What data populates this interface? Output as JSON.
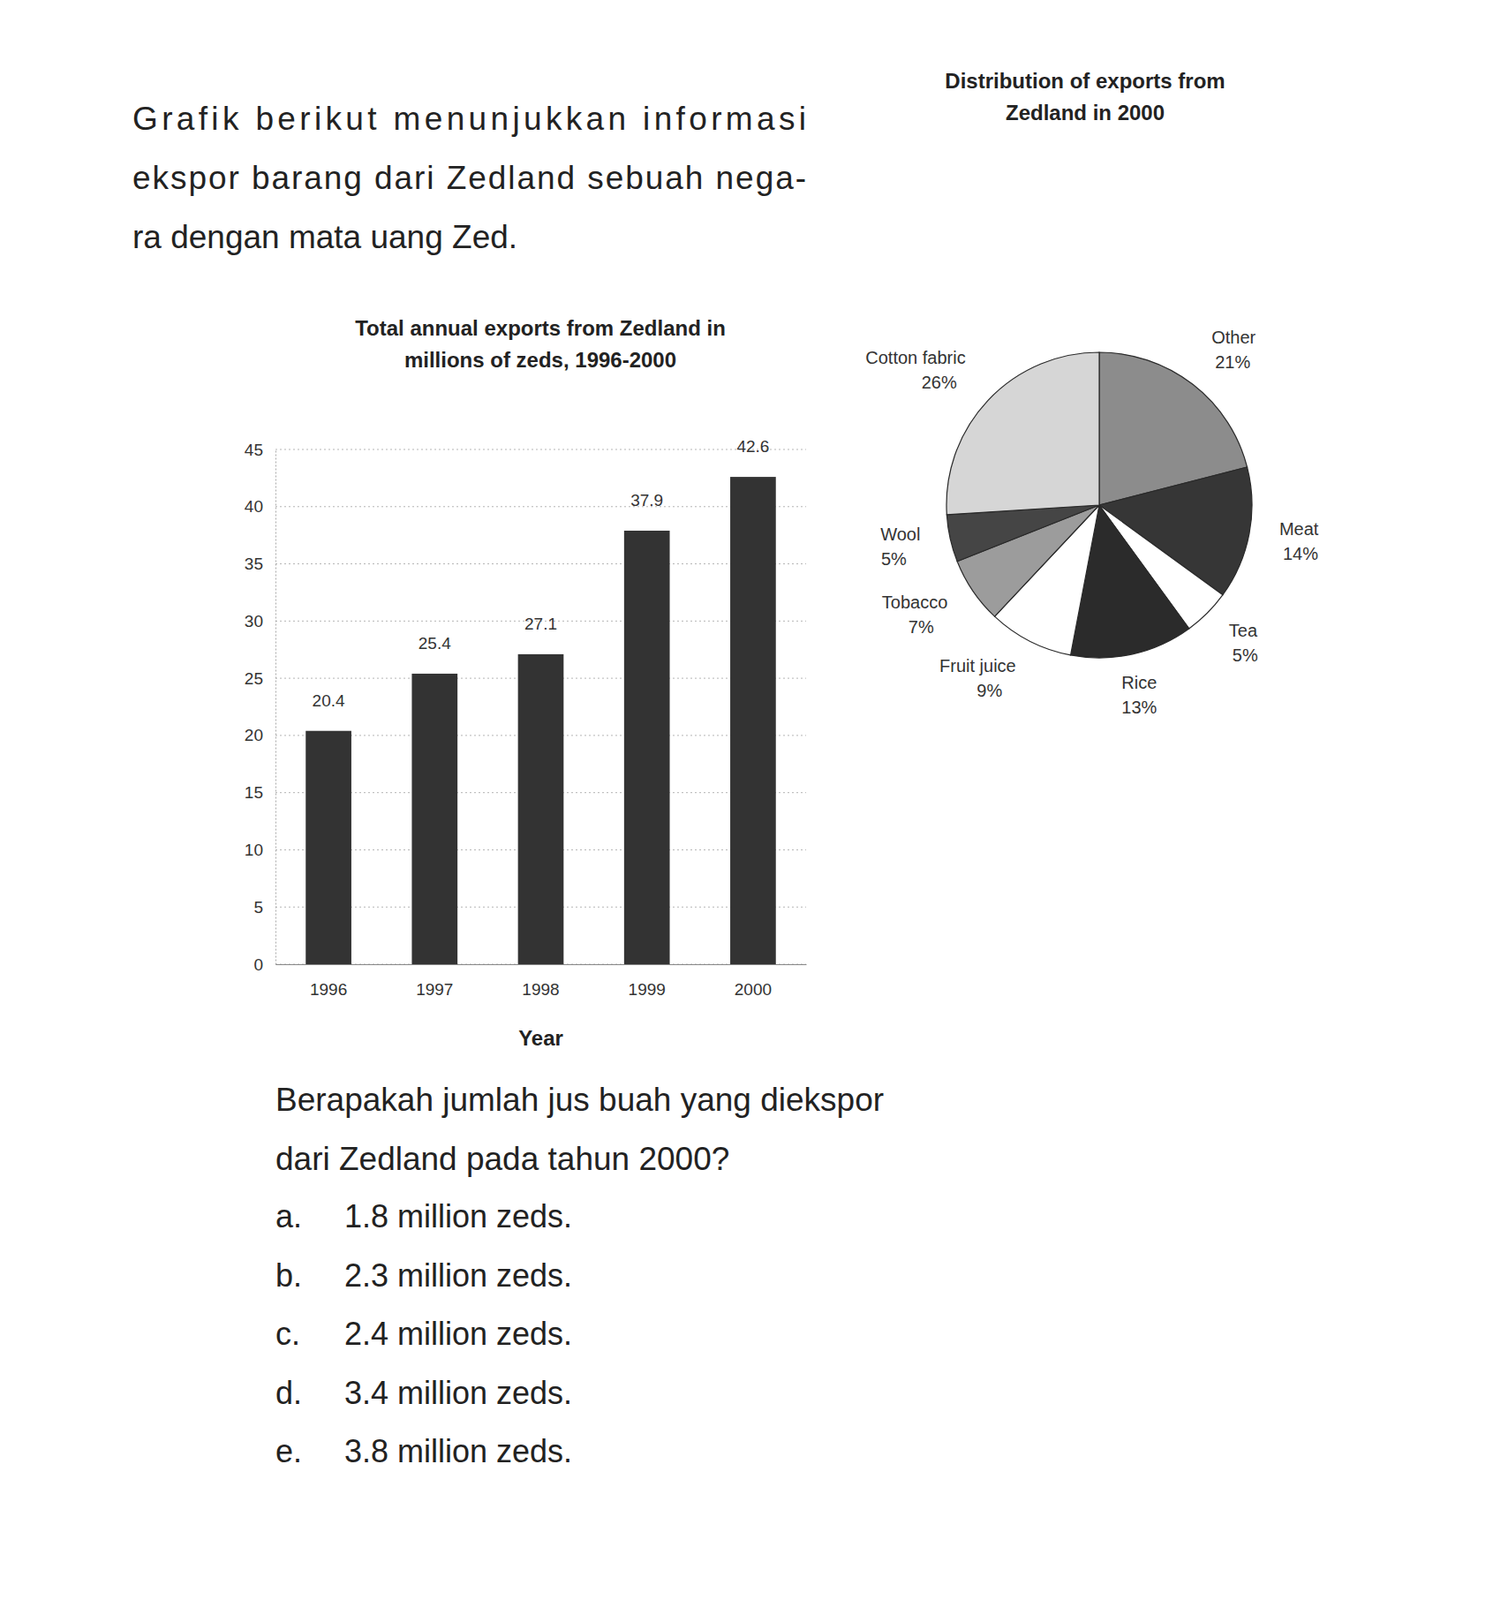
{
  "intro": {
    "lines": [
      "Grafik berikut menunjukkan informasi",
      "ekspor barang dari Zedland sebuah nega-",
      "ra dengan mata uang Zed."
    ]
  },
  "chart_data": [
    {
      "type": "bar",
      "title": "Total annual exports from Zedland in millions of zeds, 1996-2000",
      "xlabel": "Year",
      "categories": [
        "1996",
        "1997",
        "1998",
        "1999",
        "2000"
      ],
      "values": [
        20.4,
        25.4,
        27.1,
        37.9,
        42.6
      ],
      "color": "#333333",
      "ylim": [
        0,
        45
      ],
      "yticks": [
        0,
        5,
        10,
        15,
        20,
        25,
        30,
        35,
        40,
        45
      ],
      "grid": true,
      "data_labels": true
    },
    {
      "type": "pie",
      "title": "Distribution of exports from Zedland in 2000",
      "categories": [
        "Other",
        "Meat",
        "Tea",
        "Rice",
        "Fruit juice",
        "Tobacco",
        "Wool",
        "Cotton fabric"
      ],
      "values": [
        21,
        14,
        5,
        13,
        9,
        7,
        5,
        26
      ],
      "value_labels": [
        "21%",
        "14%",
        "5%",
        "13%",
        "9%",
        "7%",
        "5%",
        "26%"
      ],
      "colors": [
        "#8c8c8c",
        "#363636",
        "#ffffff",
        "#2b2b2b",
        "#ffffff",
        "#9c9c9c",
        "#454545",
        "#d6d6d6"
      ],
      "data_labels": true
    }
  ],
  "question": {
    "lines": [
      "Berapakah jumlah jus buah yang diekspor",
      "dari Zedland pada tahun 2000?"
    ],
    "options": [
      {
        "letter": "a.",
        "text": "1.8 million zeds."
      },
      {
        "letter": "b.",
        "text": "2.3 million zeds."
      },
      {
        "letter": "c.",
        "text": "2.4 million zeds."
      },
      {
        "letter": "d.",
        "text": "3.4 million zeds."
      },
      {
        "letter": "e.",
        "text": "3.8 million zeds."
      }
    ]
  }
}
